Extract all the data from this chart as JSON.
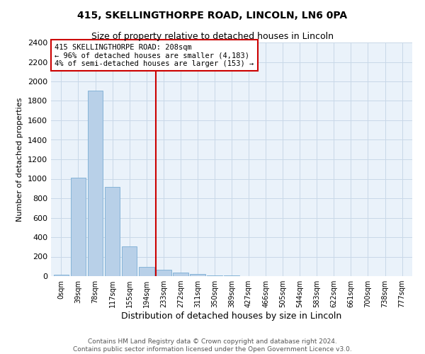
{
  "title": "415, SKELLINGTHORPE ROAD, LINCOLN, LN6 0PA",
  "subtitle": "Size of property relative to detached houses in Lincoln",
  "xlabel": "Distribution of detached houses by size in Lincoln",
  "ylabel": "Number of detached properties",
  "bar_labels": [
    "0sqm",
    "39sqm",
    "78sqm",
    "117sqm",
    "155sqm",
    "194sqm",
    "233sqm",
    "272sqm",
    "311sqm",
    "350sqm",
    "389sqm",
    "427sqm",
    "466sqm",
    "505sqm",
    "544sqm",
    "583sqm",
    "622sqm",
    "661sqm",
    "700sqm",
    "738sqm",
    "777sqm"
  ],
  "bar_values": [
    15,
    1010,
    1905,
    915,
    305,
    95,
    65,
    40,
    20,
    10,
    5,
    3,
    2,
    1,
    1,
    1,
    0,
    0,
    0,
    0,
    0
  ],
  "bar_color": "#b8d0e8",
  "bar_edge_color": "#7aadd4",
  "vline_x": 5.55,
  "vline_color": "#cc0000",
  "annotation_box_text": "415 SKELLINGTHORPE ROAD: 208sqm\n← 96% of detached houses are smaller (4,183)\n4% of semi-detached houses are larger (153) →",
  "annotation_box_color": "#cc0000",
  "ylim": [
    0,
    2400
  ],
  "yticks": [
    0,
    200,
    400,
    600,
    800,
    1000,
    1200,
    1400,
    1600,
    1800,
    2000,
    2200,
    2400
  ],
  "grid_color": "#c8d8e8",
  "bg_color": "#eaf2fa",
  "footer_line1": "Contains HM Land Registry data © Crown copyright and database right 2024.",
  "footer_line2": "Contains public sector information licensed under the Open Government Licence v3.0.",
  "title_fontsize": 10,
  "subtitle_fontsize": 9,
  "annotation_fontsize": 7.5,
  "footer_fontsize": 6.5,
  "ylabel_fontsize": 8,
  "xlabel_fontsize": 9
}
